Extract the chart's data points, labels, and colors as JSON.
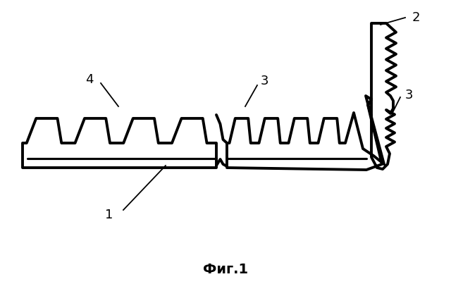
{
  "title": "Фиг.1",
  "title_fontsize": 14,
  "title_fontweight": "bold",
  "background_color": "#ffffff",
  "line_color": "#000000",
  "line_width": 2.8,
  "label_fontsize": 13
}
